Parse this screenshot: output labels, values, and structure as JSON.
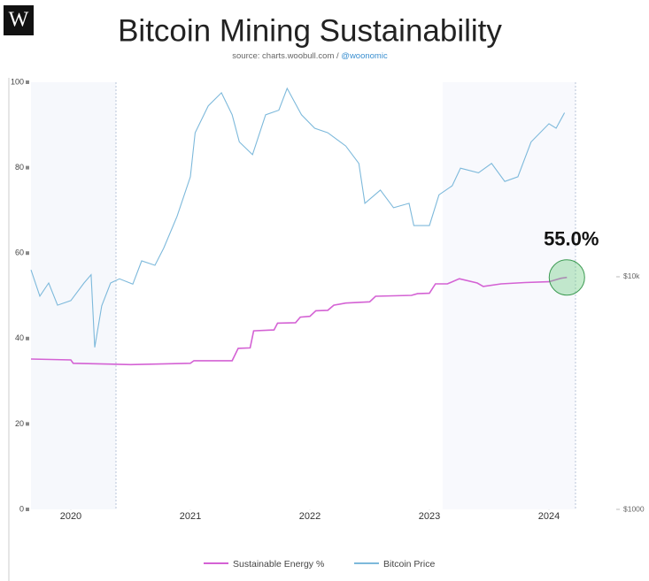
{
  "logo": "W",
  "chart_data": {
    "type": "line",
    "title": "Bitcoin Mining Sustainability",
    "source": "source: charts.woobull.com /",
    "credit": "@woonomic",
    "annotation": "55.0%",
    "xlim": [
      2019.667,
      2024.348
    ],
    "xticks": [
      2020,
      2021,
      2022,
      2023,
      2024
    ],
    "ylim": [
      0,
      100
    ],
    "yticks": [
      0,
      20,
      40,
      60,
      80,
      100
    ],
    "y2lim": [
      1000,
      68600
    ],
    "y2scale": "log",
    "y2ticks": [
      {
        "value": 10000,
        "label": "$10k"
      },
      {
        "value": 1000,
        "label": "$1000"
      }
    ],
    "grid": false,
    "legend": "bottom",
    "series": [
      {
        "name": "Sustainable Energy %",
        "color": "#d462d4",
        "axis": "y",
        "x": [
          2019.667,
          2020.0,
          2020.02,
          2020.5,
          2021.0,
          2021.03,
          2021.35,
          2021.4,
          2021.5,
          2021.53,
          2021.7,
          2021.73,
          2021.88,
          2021.92,
          2022.0,
          2022.05,
          2022.15,
          2022.2,
          2022.3,
          2022.5,
          2022.55,
          2022.85,
          2022.9,
          2023.0,
          2023.05,
          2023.15,
          2023.25,
          2023.4,
          2023.45,
          2023.6,
          2023.8,
          2024.0,
          2024.1,
          2024.15
        ],
        "values": [
          35.2,
          35.0,
          34.2,
          33.9,
          34.2,
          34.8,
          34.8,
          37.7,
          37.8,
          41.8,
          42.0,
          43.6,
          43.7,
          45.0,
          45.2,
          46.5,
          46.6,
          47.8,
          48.3,
          48.6,
          49.9,
          50.1,
          50.5,
          50.6,
          52.8,
          52.8,
          54.0,
          53.0,
          52.2,
          52.8,
          53.1,
          53.3,
          54.1,
          54.3
        ]
      },
      {
        "name": "Bitcoin Price",
        "color": "#7db9db",
        "axis": "y2",
        "x": [
          2019.667,
          2019.741,
          2019.815,
          2019.889,
          2020.0,
          2020.111,
          2020.17,
          2020.2,
          2020.259,
          2020.333,
          2020.407,
          2020.519,
          2020.593,
          2020.704,
          2020.778,
          2020.889,
          2021.0,
          2021.04,
          2021.15,
          2021.26,
          2021.35,
          2021.41,
          2021.52,
          2021.63,
          2021.74,
          2021.81,
          2021.93,
          2022.04,
          2022.15,
          2022.3,
          2022.41,
          2022.46,
          2022.59,
          2022.7,
          2022.83,
          2022.87,
          2023.0,
          2023.08,
          2023.19,
          2023.26,
          2023.41,
          2023.52,
          2023.63,
          2023.74,
          2023.85,
          2024.0,
          2024.06,
          2024.13
        ],
        "values": [
          10700,
          8250,
          9400,
          7550,
          7900,
          9400,
          10200,
          4970,
          7500,
          9400,
          9800,
          9300,
          11700,
          11200,
          13300,
          18200,
          26900,
          41600,
          54300,
          61800,
          49700,
          38000,
          33500,
          49700,
          52000,
          64600,
          49700,
          43500,
          41600,
          36500,
          30700,
          20700,
          23600,
          19800,
          20700,
          16600,
          16600,
          22500,
          24600,
          29300,
          28000,
          30700,
          25700,
          26900,
          38000,
          45500,
          43500,
          50700
        ]
      }
    ]
  }
}
